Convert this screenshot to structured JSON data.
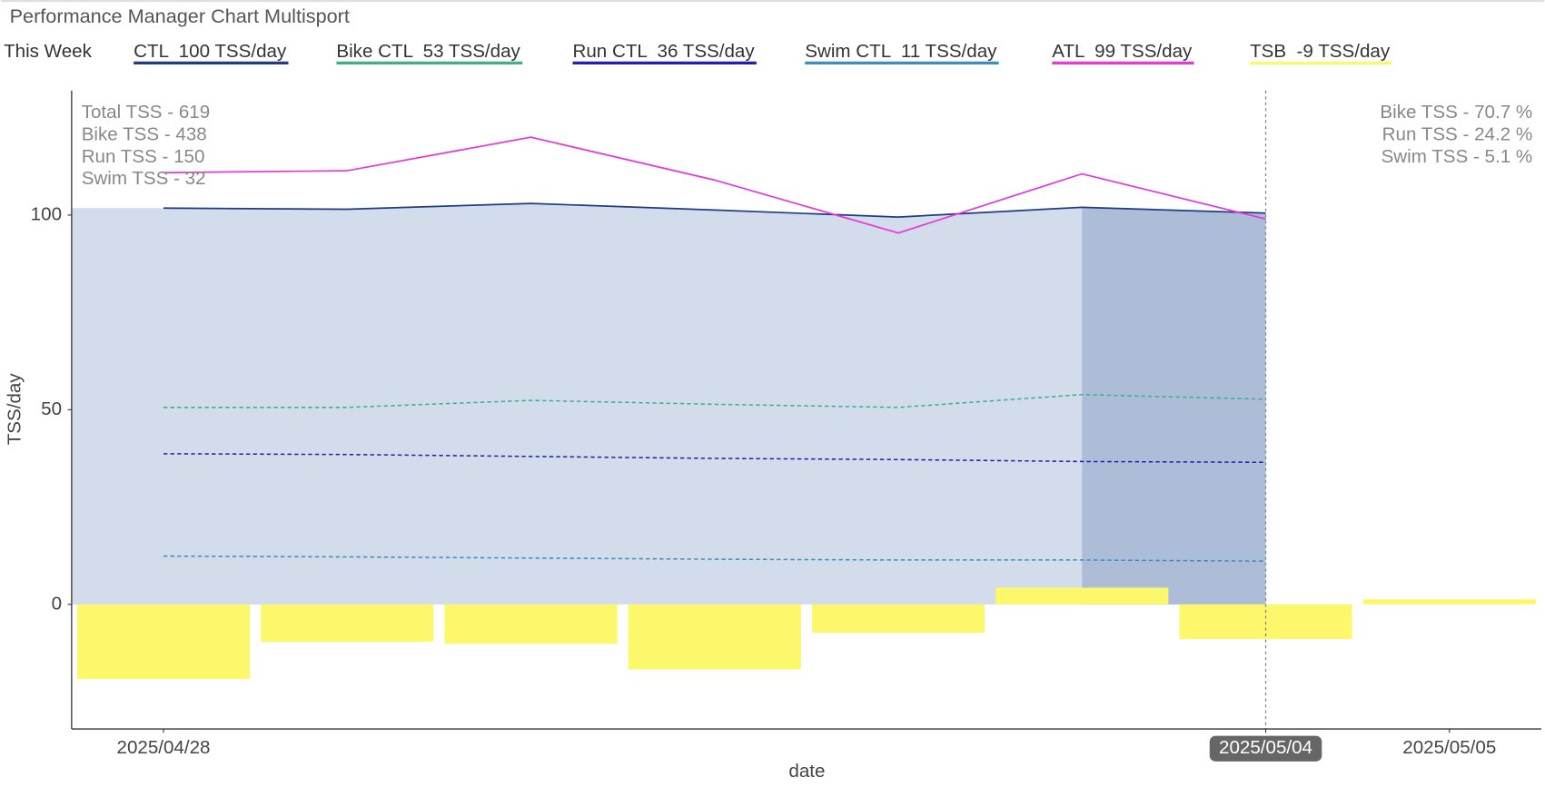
{
  "chart_data": {
    "type": "line",
    "title": "Performance Manager Chart Multisport",
    "legend_title": "This Week",
    "x": [
      "2025/04/28",
      "2025/04/29",
      "2025/04/30",
      "2025/05/01",
      "2025/05/02",
      "2025/05/03",
      "2025/05/04",
      "2025/05/05"
    ],
    "xticks": [
      "2025/04/28",
      "2025/05/04",
      "2025/05/05"
    ],
    "marker_date": "2025/05/04",
    "highlight_range": [
      "2025/05/03",
      "2025/05/04"
    ],
    "xlabel": "date",
    "ylabel": "TSS/day",
    "ylim": [
      -32,
      132
    ],
    "yticks": [
      0,
      50,
      100
    ],
    "series": [
      {
        "name": "CTL  100 TSS/day",
        "type": "area",
        "color": "#1f3c88",
        "dash": false,
        "values": [
          101.8,
          101.5,
          103,
          101.3,
          99.5,
          102,
          100.5,
          null
        ]
      },
      {
        "name": "Bike CTL  53 TSS/day",
        "type": "line",
        "color": "#3cb08e",
        "dash": true,
        "values": [
          50.6,
          50.6,
          52.4,
          51.4,
          50.6,
          53.9,
          52.7,
          null
        ]
      },
      {
        "name": "Run CTL  36 TSS/day",
        "type": "line",
        "color": "#2020b0",
        "dash": true,
        "values": [
          38.7,
          38.5,
          38,
          37.5,
          37.2,
          36.7,
          36.5,
          null
        ]
      },
      {
        "name": "Swim CTL  11 TSS/day",
        "type": "line",
        "color": "#3a8fc0",
        "dash": true,
        "values": [
          12.4,
          12.2,
          11.9,
          11.6,
          11.4,
          11.4,
          11.1,
          null
        ]
      },
      {
        "name": "ATL  99 TSS/day",
        "type": "line",
        "color": "#e63ad8",
        "dash": false,
        "values": [
          110.9,
          111.4,
          120,
          109,
          95.4,
          110.6,
          99,
          null
        ]
      },
      {
        "name": "TSB  -9 TSS/day",
        "type": "bar",
        "color": "#fdf86b",
        "dash": false,
        "values": [
          -19.2,
          -9.6,
          -10.1,
          -16.7,
          -7.3,
          4.3,
          -8.9,
          1.3
        ]
      }
    ],
    "annotations_left": [
      "Total TSS - 619",
      "Bike TSS - 438",
      "Run TSS - 150",
      "Swim TSS - 32"
    ],
    "annotations_right": [
      "Bike TSS - 70.7 %",
      "Run TSS - 24.2 %",
      "Swim TSS - 5.1 %"
    ]
  }
}
